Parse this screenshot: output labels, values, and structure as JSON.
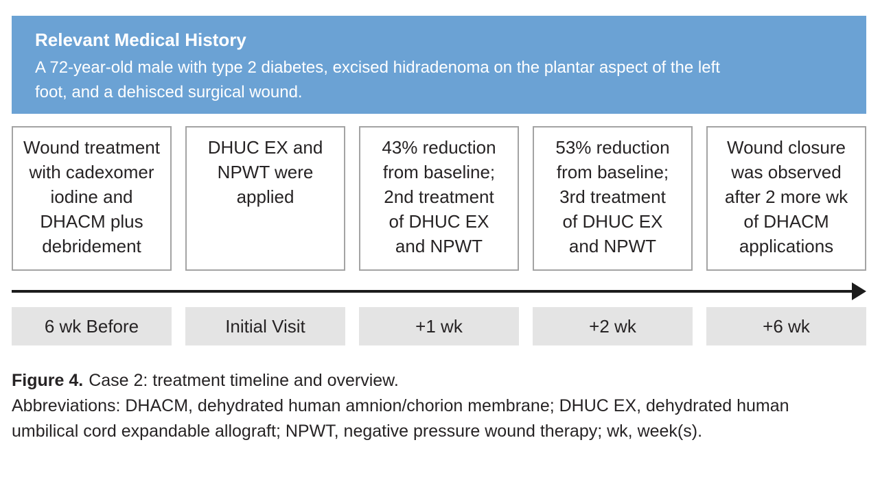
{
  "banner": {
    "title": "Relevant Medical History",
    "description": "A 72-year-old male with type 2 diabetes, excised hidradenoma on the plantar aspect of the left\nfoot, and a dehisced surgical wound."
  },
  "timeline": {
    "events": [
      {
        "description": "Wound treatment\nwith cadexomer\niodine and\nDHACM plus\ndebridement",
        "time": "6 wk Before"
      },
      {
        "description": "DHUC EX and\nNPWT were\napplied",
        "time": "Initial Visit"
      },
      {
        "description": "43% reduction\nfrom baseline;\n2nd treatment\nof DHUC EX\nand NPWT",
        "time": "+1 wk"
      },
      {
        "description": "53% reduction\nfrom baseline;\n3rd treatment\nof DHUC EX\nand NPWT",
        "time": "+2 wk"
      },
      {
        "description": "Wound closure\nwas observed\nafter 2 more wk\nof DHACM\napplications",
        "time": "+6 wk"
      }
    ]
  },
  "caption": {
    "figure_label": "Figure 4.",
    "figure_text": "Case 2: treatment timeline and overview.",
    "abbreviations": "Abbreviations: DHACM, dehydrated human amnion/chorion membrane; DHUC EX, dehydrated human\numbilical cord expandable allograft; NPWT, negative pressure wound therapy; wk, week(s)."
  },
  "colors": {
    "banner_blue": "#6ba2d4",
    "label_gray": "#e4e4e4",
    "box_border_gray": "#a3a3a3",
    "text_dark": "#262324",
    "arrow_black": "#1c1c1c"
  }
}
